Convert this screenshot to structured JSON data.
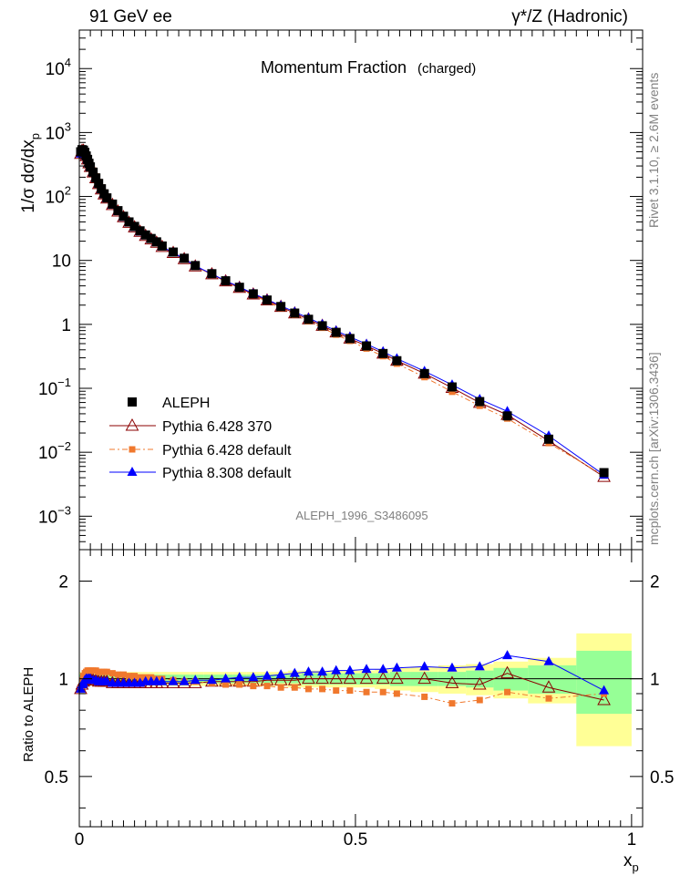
{
  "header": {
    "left": "91 GeV ee",
    "right": "γ*/Z (Hadronic)"
  },
  "side_labels": {
    "rivet": "Rivet 3.1.10, ≥ 2.6M events",
    "mcplots": "mcplots.cern.ch [arXiv:1306.3436]"
  },
  "main_panel": {
    "title": "Momentum Fraction",
    "title_sub": "(charged)",
    "watermark": "ALEPH_1996_S3486095",
    "ylabel": "1/σ dσ/dx",
    "ylabel_sub": "p",
    "y_ticks": [
      {
        "v": 0.001,
        "base": "10",
        "exp": "−3"
      },
      {
        "v": 0.01,
        "base": "10",
        "exp": "−2"
      },
      {
        "v": 0.1,
        "base": "10",
        "exp": "−1"
      },
      {
        "v": 1,
        "base": "1",
        "exp": ""
      },
      {
        "v": 10,
        "base": "10",
        "exp": ""
      },
      {
        "v": 100,
        "base": "10",
        "exp": "2"
      },
      {
        "v": 1000,
        "base": "10",
        "exp": "3"
      },
      {
        "v": 10000,
        "base": "10",
        "exp": "4"
      }
    ]
  },
  "ratio_panel": {
    "ylabel": "Ratio to ALEPH",
    "y_ticks": [
      "0.5",
      "1",
      "2"
    ],
    "x_ticks": [
      "0",
      "0.5",
      "1"
    ],
    "xlabel": "x",
    "xlabel_sub": "p"
  },
  "legend": [
    {
      "label": "ALEPH",
      "color": "#000000",
      "marker": "square"
    },
    {
      "label": "Pythia 6.428 370",
      "color": "#8b0000",
      "marker": "open-triangle"
    },
    {
      "label": "Pythia 6.428 default",
      "color": "#f0782d",
      "marker": "small-square"
    },
    {
      "label": "Pythia 8.308 default",
      "color": "#0000ff",
      "marker": "triangle"
    }
  ],
  "chart_data": {
    "type": "line",
    "title": "Momentum Fraction (charged)",
    "xlabel": "x_p",
    "ylabel": "1/σ dσ/dx_p",
    "xlim": [
      0,
      1.02
    ],
    "ylim": [
      0.0003,
      40000
    ],
    "y_scale": "log",
    "ratio_ylim": [
      0.35,
      2.5
    ],
    "ratio_scale": "log",
    "x": [
      0.0025,
      0.005,
      0.0075,
      0.01,
      0.0125,
      0.015,
      0.0175,
      0.02,
      0.025,
      0.03,
      0.035,
      0.04,
      0.045,
      0.05,
      0.06,
      0.07,
      0.08,
      0.09,
      0.1,
      0.11,
      0.12,
      0.13,
      0.14,
      0.15,
      0.17,
      0.19,
      0.21,
      0.24,
      0.265,
      0.29,
      0.315,
      0.34,
      0.365,
      0.39,
      0.415,
      0.44,
      0.465,
      0.49,
      0.52,
      0.55,
      0.575,
      0.625,
      0.675,
      0.725,
      0.775,
      0.85,
      0.95
    ],
    "series": [
      {
        "name": "ALEPH",
        "values": [
          500,
          540,
          530,
          490,
          430,
          380,
          330,
          290,
          240,
          195,
          160,
          132,
          110,
          95,
          76,
          60,
          49,
          40,
          34,
          29,
          25,
          22,
          19.5,
          16.8,
          13.5,
          10.8,
          8.3,
          6.2,
          4.8,
          3.8,
          3.0,
          2.4,
          1.9,
          1.5,
          1.2,
          0.95,
          0.75,
          0.6,
          0.46,
          0.35,
          0.27,
          0.17,
          0.105,
          0.062,
          0.037,
          0.016,
          0.0048
        ],
        "ratio_band_inner": [
          0.03,
          0.03,
          0.03,
          0.03,
          0.03,
          0.03,
          0.03,
          0.03,
          0.03,
          0.03,
          0.03,
          0.03,
          0.03,
          0.03,
          0.03,
          0.03,
          0.03,
          0.03,
          0.03,
          0.03,
          0.03,
          0.03,
          0.03,
          0.03,
          0.03,
          0.03,
          0.03,
          0.03,
          0.03,
          0.03,
          0.03,
          0.03,
          0.03,
          0.03,
          0.04,
          0.04,
          0.04,
          0.04,
          0.04,
          0.04,
          0.05,
          0.05,
          0.05,
          0.06,
          0.08,
          0.1,
          0.22
        ],
        "ratio_band_outer": [
          0.05,
          0.05,
          0.05,
          0.05,
          0.05,
          0.05,
          0.05,
          0.05,
          0.05,
          0.05,
          0.05,
          0.05,
          0.05,
          0.05,
          0.05,
          0.05,
          0.05,
          0.05,
          0.05,
          0.05,
          0.05,
          0.05,
          0.05,
          0.05,
          0.05,
          0.05,
          0.05,
          0.05,
          0.05,
          0.05,
          0.05,
          0.05,
          0.05,
          0.06,
          0.06,
          0.06,
          0.06,
          0.06,
          0.06,
          0.07,
          0.08,
          0.09,
          0.1,
          0.11,
          0.13,
          0.16,
          0.38
        ]
      },
      {
        "name": "Pythia 6.428 370",
        "ratio": [
          0.93,
          0.96,
          0.98,
          0.99,
          1.0,
          1.0,
          1.0,
          1.0,
          0.99,
          0.99,
          0.98,
          0.98,
          0.98,
          0.98,
          0.97,
          0.97,
          0.97,
          0.97,
          0.97,
          0.97,
          0.97,
          0.97,
          0.97,
          0.97,
          0.97,
          0.97,
          0.97,
          0.98,
          0.98,
          0.98,
          0.98,
          0.99,
          0.99,
          0.99,
          1.0,
          1.0,
          1.0,
          1.0,
          1.0,
          1.0,
          1.0,
          1.0,
          0.97,
          0.96,
          1.04,
          0.94,
          0.86
        ]
      },
      {
        "name": "Pythia 6.428 default",
        "ratio": [
          0.93,
          0.99,
          1.02,
          1.04,
          1.05,
          1.06,
          1.06,
          1.06,
          1.06,
          1.06,
          1.05,
          1.05,
          1.05,
          1.05,
          1.04,
          1.03,
          1.03,
          1.02,
          1.02,
          1.01,
          1.01,
          1.01,
          1.0,
          1.0,
          0.99,
          0.98,
          0.98,
          0.97,
          0.96,
          0.96,
          0.95,
          0.95,
          0.94,
          0.94,
          0.93,
          0.93,
          0.92,
          0.92,
          0.91,
          0.91,
          0.9,
          0.88,
          0.84,
          0.86,
          0.91,
          0.87,
          0.9
        ]
      },
      {
        "name": "Pythia 8.308 default",
        "ratio": [
          0.93,
          0.96,
          0.97,
          0.99,
          1.0,
          1.0,
          1.0,
          1.0,
          0.99,
          0.99,
          0.98,
          0.98,
          0.98,
          0.98,
          0.97,
          0.97,
          0.97,
          0.97,
          0.97,
          0.97,
          0.98,
          0.98,
          0.98,
          0.98,
          0.98,
          0.98,
          0.99,
          0.99,
          1.0,
          1.01,
          1.01,
          1.02,
          1.03,
          1.04,
          1.05,
          1.05,
          1.06,
          1.06,
          1.07,
          1.07,
          1.08,
          1.09,
          1.08,
          1.09,
          1.18,
          1.13,
          0.92
        ]
      }
    ]
  }
}
